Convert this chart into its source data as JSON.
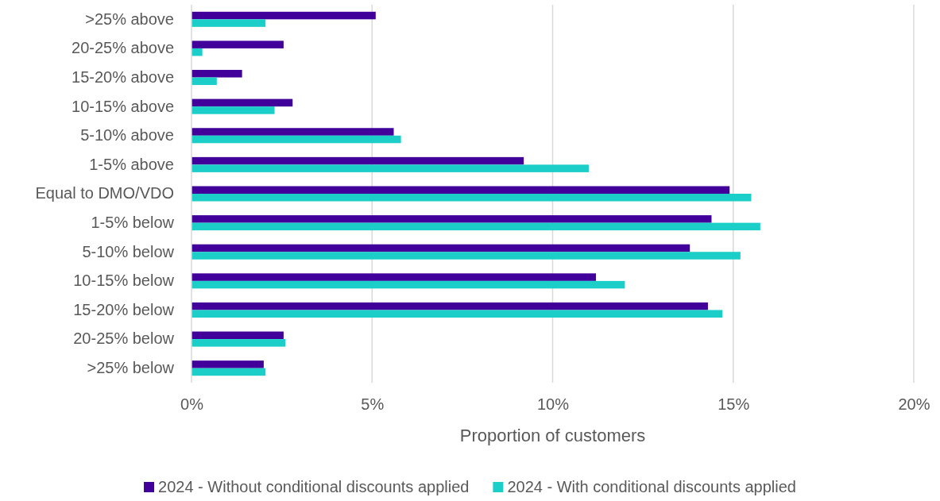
{
  "chart_data": {
    "type": "bar",
    "orientation": "horizontal",
    "xlabel": "Proportion of customers",
    "categories": [
      ">25% above",
      "20-25% above",
      "15-20% above",
      "10-15% above",
      "5-10% above",
      "1-5% above",
      "Equal to DMO/VDO",
      "1-5% below",
      "5-10% below",
      "10-15% below",
      "15-20% below",
      "20-25% below",
      ">25% below"
    ],
    "series": [
      {
        "name": "2024 - Without conditional discounts applied",
        "color": "#42009a",
        "values": [
          5.1,
          2.55,
          1.4,
          2.8,
          5.6,
          9.2,
          14.9,
          14.4,
          13.8,
          11.2,
          14.3,
          2.55,
          2.0
        ]
      },
      {
        "name": "2024 - With conditional discounts applied",
        "color": "#1ccec8",
        "values": [
          2.05,
          0.3,
          0.7,
          2.3,
          5.8,
          11.0,
          15.5,
          15.75,
          15.2,
          12.0,
          14.7,
          2.6,
          2.05
        ]
      }
    ],
    "xlim": [
      0,
      20
    ],
    "xticks": [
      {
        "value": 0,
        "label": "0%"
      },
      {
        "value": 5,
        "label": "5%"
      },
      {
        "value": 10,
        "label": "10%"
      },
      {
        "value": 15,
        "label": "15%"
      },
      {
        "value": 20,
        "label": "20%"
      }
    ],
    "grid": "x",
    "legend": "bottom"
  }
}
